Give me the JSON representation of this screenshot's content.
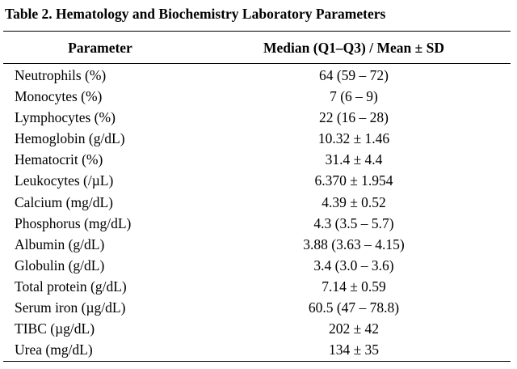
{
  "caption": "Table 2. Hematology and Biochemistry Laboratory Parameters",
  "columns": {
    "parameter": "Parameter",
    "value": "Median (Q1–Q3) / Mean ± SD"
  },
  "rows": [
    {
      "parameter": "Neutrophils (%)",
      "value": "64 (59 – 72)"
    },
    {
      "parameter": "Monocytes (%)",
      "value": "7 (6 – 9)"
    },
    {
      "parameter": "Lymphocytes (%)",
      "value": "22 (16 – 28)"
    },
    {
      "parameter": "Hemoglobin (g/dL)",
      "value": "10.32 ± 1.46"
    },
    {
      "parameter": "Hematocrit (%)",
      "value": "31.4 ± 4.4"
    },
    {
      "parameter": "Leukocytes (/µL)",
      "value": "6.370 ± 1.954"
    },
    {
      "parameter": "Calcium (mg/dL)",
      "value": "4.39 ± 0.52"
    },
    {
      "parameter": "Phosphorus (mg/dL)",
      "value": "4.3 (3.5 – 5.7)"
    },
    {
      "parameter": "Albumin (g/dL)",
      "value": "3.88 (3.63 – 4.15)"
    },
    {
      "parameter": "Globulin (g/dL)",
      "value": "3.4 (3.0 – 3.6)"
    },
    {
      "parameter": "Total protein (g/dL)",
      "value": "7.14 ± 0.59"
    },
    {
      "parameter": "Serum iron (µg/dL)",
      "value": "60.5 (47 – 78.8)"
    },
    {
      "parameter": "TIBC (µg/dL)",
      "value": "202 ± 42"
    },
    {
      "parameter": "Urea (mg/dL)",
      "value": "134 ± 35"
    }
  ]
}
